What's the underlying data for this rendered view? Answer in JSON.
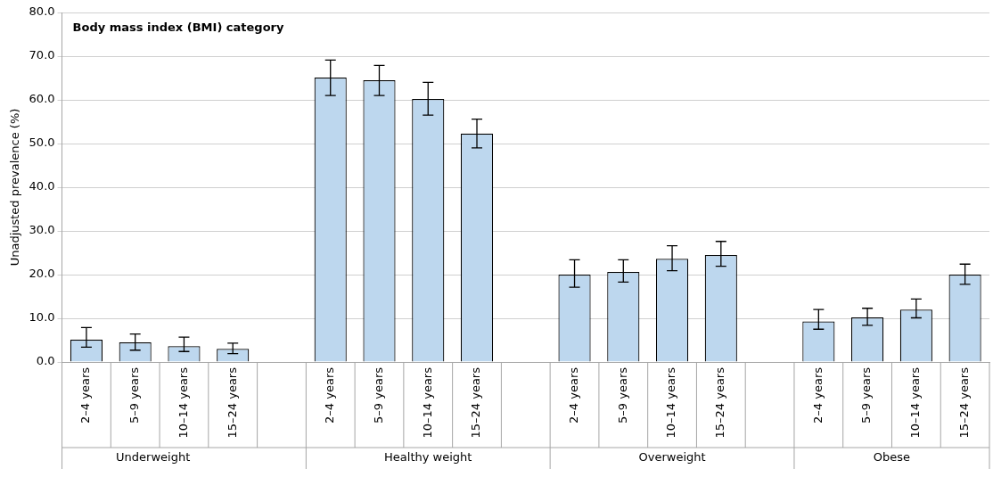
{
  "chart_data": {
    "type": "bar",
    "title": "Body mass index (BMI) category",
    "ylabel": "Unadjusted prevalence (%)",
    "categories": [
      "2–4 years",
      "5–9 years",
      "10–14 years",
      "15–24 years",
      null,
      "2–4 years",
      "5–9 years",
      "10–14 years",
      "15–24 years",
      null,
      "2–4 years",
      "5–9 years",
      "10–14 years",
      "15–24 years",
      null,
      "2–4 years",
      "5–9 years",
      "10–14 years",
      "15–24 years"
    ],
    "values": [
      5.1,
      4.5,
      3.6,
      3.0,
      null,
      65.1,
      64.5,
      60.2,
      52.3,
      null,
      20.0,
      20.6,
      23.6,
      24.5,
      null,
      9.3,
      10.2,
      12.0,
      20.0
    ],
    "errors": [
      [
        3.4,
        7.9
      ],
      [
        2.7,
        6.4
      ],
      [
        2.4,
        5.7
      ],
      [
        1.9,
        4.3
      ],
      null,
      [
        61.0,
        69.1
      ],
      [
        61.0,
        67.9
      ],
      [
        56.5,
        64.0
      ],
      [
        49.0,
        55.6
      ],
      null,
      [
        17.1,
        23.4
      ],
      [
        18.3,
        23.4
      ],
      [
        20.9,
        26.6
      ],
      [
        21.9,
        27.6
      ],
      null,
      [
        7.5,
        12.0
      ],
      [
        8.4,
        12.3
      ],
      [
        10.1,
        14.4
      ],
      [
        17.8,
        22.4
      ]
    ],
    "color": "#bdd7ee",
    "ylim": [
      0,
      80
    ],
    "yticks": [
      {
        "value": 0,
        "label": "0.0"
      },
      {
        "value": 10,
        "label": "10.0"
      },
      {
        "value": 20,
        "label": "20.0"
      },
      {
        "value": 30,
        "label": "30.0"
      },
      {
        "value": 40,
        "label": "40.0"
      },
      {
        "value": 50,
        "label": "50.0"
      },
      {
        "value": 60,
        "label": "60.0"
      },
      {
        "value": 70,
        "label": "70.0"
      },
      {
        "value": 80,
        "label": "80.0"
      }
    ],
    "grid": "y",
    "annotations": [
      "Underweight",
      "Healthy weight",
      "Overweight",
      "Obese"
    ]
  }
}
